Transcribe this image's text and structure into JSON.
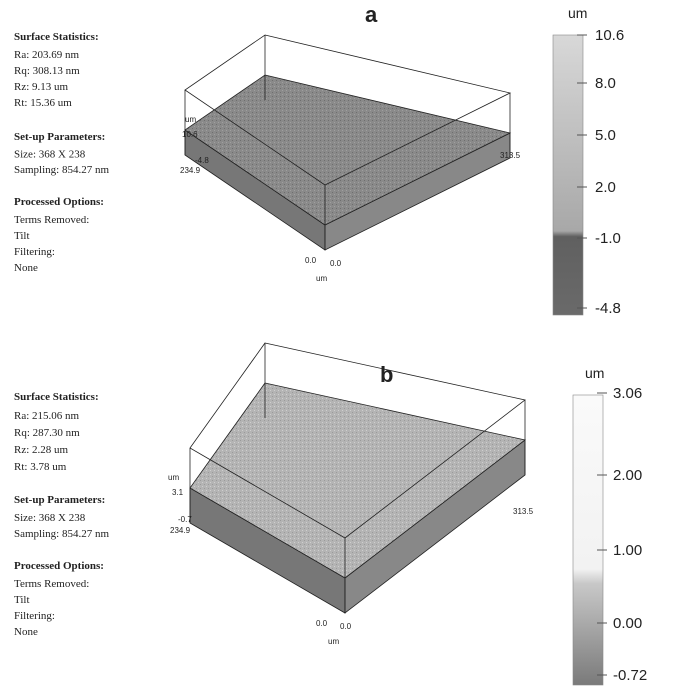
{
  "panels": [
    {
      "label": "a",
      "statistics": {
        "title": "Surface Statistics:",
        "lines": [
          "Ra:  203.69 nm",
          "Rq:  308.13 nm",
          "Rz:  9.13 um",
          "Rt:  15.36 um"
        ]
      },
      "setup": {
        "title": "Set-up Parameters:",
        "lines": [
          "Size: 368 X 238",
          "Sampling:  854.27 nm"
        ]
      },
      "options": {
        "title": "Processed Options:",
        "lines": [
          "Terms Removed:",
          "Tilt",
          "Filtering:",
          "None"
        ]
      },
      "axis_labels": {
        "z_unit": "um",
        "z_max": "10.6",
        "z_min": "-4.8",
        "y_max": "234.9",
        "x_max": "313.5",
        "y_zero": "0.0",
        "x_zero": "0.0",
        "xy_unit": "um"
      },
      "colorbar": {
        "unit": "um",
        "ticks": [
          "10.6",
          "8.0",
          "5.0",
          "2.0",
          "-1.0",
          "-4.8"
        ]
      }
    },
    {
      "label": "b",
      "statistics": {
        "title": "Surface Statistics:",
        "lines": [
          "Ra:  215.06 nm",
          "Rq:  287.30 nm",
          "Rz:  2.28 um",
          "Rt:  3.78 um"
        ]
      },
      "setup": {
        "title": "Set-up Parameters:",
        "lines": [
          "Size: 368 X 238",
          "Sampling:  854.27 nm"
        ]
      },
      "options": {
        "title": "Processed Options:",
        "lines": [
          "Terms Removed:",
          "Tilt",
          "Filtering:",
          "None"
        ]
      },
      "axis_labels": {
        "z_unit": "um",
        "z_max": "3.1",
        "z_min": "-0.7",
        "y_max": "234.9",
        "x_max": "313.5",
        "y_zero": "0.0",
        "x_zero": "0.0",
        "xy_unit": "um"
      },
      "colorbar": {
        "unit": "um",
        "ticks": [
          "3.06",
          "2.00",
          "1.00",
          "0.00",
          "-0.72"
        ]
      }
    }
  ]
}
